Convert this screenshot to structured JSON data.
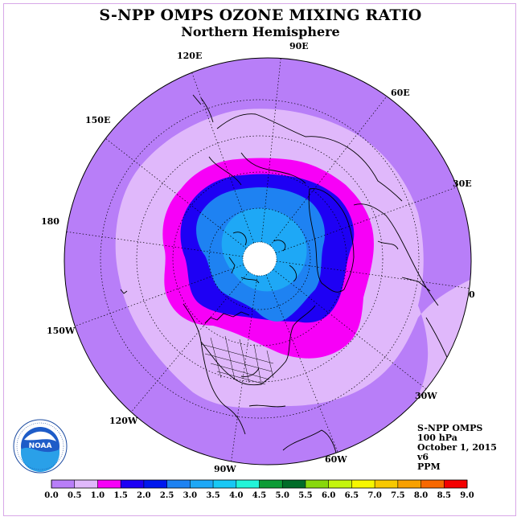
{
  "title": "S-NPP OMPS OZONE MIXING RATIO",
  "subtitle": "Northern Hemisphere",
  "longitude_labels": {
    "e120": "120E",
    "e90": "90E",
    "e60": "60E",
    "e150": "150E",
    "e30": "30E",
    "d180": "180",
    "d0": "0",
    "w150": "150W",
    "w30": "30W",
    "w120": "120W",
    "w60": "60W",
    "w90": "90W"
  },
  "info": {
    "instrument": "S-NPP OMPS",
    "level": "100 hPa",
    "date": "October 1, 2015",
    "version": "v6",
    "units": "PPM"
  },
  "logo": {
    "text": "NOAA",
    "ring_text": "NATIONAL OCEANIC AND ATMOSPHERIC ADMINISTRATION · U.S. DEPARTMENT OF COMMERCE"
  },
  "colorbar": {
    "labels": [
      "0.0",
      "0.5",
      "1.0",
      "1.5",
      "2.0",
      "2.5",
      "3.0",
      "3.5",
      "4.0",
      "4.5",
      "5.0",
      "5.5",
      "6.0",
      "6.5",
      "7.0",
      "7.5",
      "8.0",
      "8.5",
      "9.0"
    ],
    "colors": [
      "#b87ef8",
      "#e0b8fb",
      "#f700f7",
      "#1e00f4",
      "#0018ee",
      "#1e82f2",
      "#1ea8f6",
      "#18c8f4",
      "#22f4d8",
      "#0c9c36",
      "#006c28",
      "#88d80c",
      "#c4f40c",
      "#f6f600",
      "#f8c800",
      "#f8a000",
      "#f86800",
      "#f40000",
      "#8c5830"
    ]
  },
  "map": {
    "projection": "north polar stereographic",
    "colors": {
      "band_0_05": "#b87ef8",
      "band_05_10": "#e0b8fb",
      "band_10_15": "#f700f7",
      "band_15_20": "#1e00f4",
      "band_20_25": "#1e82f2",
      "band_25_30": "#1ea8f6",
      "pole_nodata": "#ffffff",
      "coast": "#000000"
    }
  }
}
